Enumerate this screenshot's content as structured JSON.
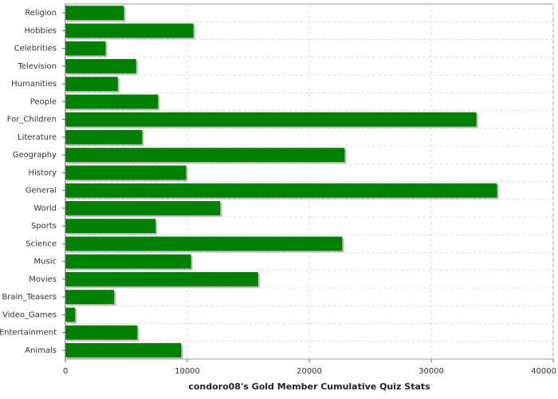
{
  "chart_data": {
    "type": "bar",
    "orientation": "horizontal",
    "x_label": "condoro08's Gold Member Cumulative Quiz Stats",
    "categories": [
      "Religion",
      "Hobbies",
      "Celebrities",
      "Television",
      "Humanities",
      "People",
      "For_Children",
      "Literature",
      "Geography",
      "History",
      "General",
      "World",
      "Sports",
      "Science",
      "Music",
      "Movies",
      "Brain_Teasers",
      "Video_Games",
      "Entertainment",
      "Animals"
    ],
    "values": [
      4800,
      10500,
      3300,
      5800,
      4300,
      7600,
      33700,
      6300,
      22900,
      9900,
      35400,
      12700,
      7400,
      22700,
      10300,
      15800,
      4000,
      800,
      5900,
      9500
    ],
    "color": "#007f00",
    "xlim": [
      0,
      40000
    ],
    "xticks": [
      0,
      10000,
      20000,
      30000,
      40000
    ],
    "grid": true
  }
}
